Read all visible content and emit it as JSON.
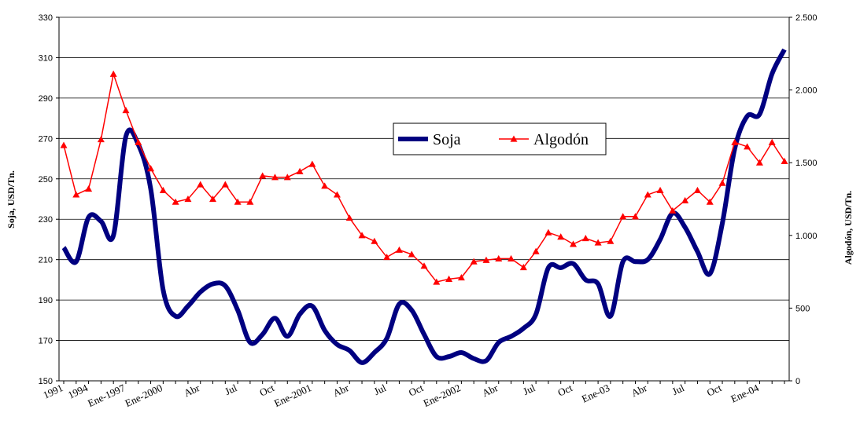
{
  "chart_data": {
    "type": "line",
    "categories": [
      "1991",
      null,
      "1994",
      null,
      null,
      "Ene-1997",
      null,
      null,
      "Ene-2000",
      null,
      null,
      "Abr",
      null,
      null,
      "Jul",
      null,
      null,
      "Oct",
      null,
      null,
      "Ene-2001",
      null,
      null,
      "Abr",
      null,
      null,
      "Jul",
      null,
      null,
      "Oct",
      null,
      null,
      "Ene-2002",
      null,
      null,
      "Abr",
      null,
      null,
      "Jul",
      null,
      null,
      "Oct",
      null,
      null,
      "Ene-03",
      null,
      null,
      "Abr",
      null,
      null,
      "Jul",
      null,
      null,
      "Oct",
      null,
      null,
      "Ene-04",
      null,
      null
    ],
    "series": [
      {
        "name": "Soja",
        "color": "#000080",
        "values": [
          216,
          209,
          231,
          229,
          222,
          271,
          267,
          245,
          195,
          182,
          187,
          194,
          198,
          197,
          185,
          169,
          173,
          181,
          172,
          183,
          187,
          175,
          168,
          165,
          159,
          164,
          171,
          188,
          185,
          173,
          162,
          162,
          164,
          161,
          160,
          169,
          172,
          176,
          183,
          206,
          206,
          208,
          200,
          198,
          182,
          209,
          209,
          210,
          220,
          233,
          226,
          214,
          203,
          228,
          265,
          281,
          282,
          302,
          314
        ]
      },
      {
        "name": "Algodón",
        "color": "#ff0000",
        "axis": "y2",
        "values": [
          1620,
          1280,
          1320,
          1660,
          2110,
          1860,
          1640,
          1460,
          1310,
          1230,
          1250,
          1350,
          1250,
          1350,
          1230,
          1230,
          1410,
          1400,
          1400,
          1440,
          1490,
          1340,
          1280,
          1120,
          1000,
          960,
          850,
          900,
          870,
          790,
          680,
          700,
          710,
          820,
          830,
          840,
          840,
          780,
          890,
          1020,
          990,
          940,
          980,
          950,
          960,
          1130,
          1130,
          1280,
          1310,
          1170,
          1240,
          1310,
          1230,
          1360,
          1640,
          1610,
          1500,
          1640,
          1510
        ]
      }
    ],
    "ylabel": "Soja, USD/Tn.",
    "y2label": "Algodón, USD/Tn.",
    "ylim": [
      150,
      330
    ],
    "yticks": [
      150,
      170,
      190,
      210,
      230,
      250,
      270,
      290,
      310,
      330
    ],
    "y2lim": [
      0,
      2500
    ],
    "y2ticks": [
      0,
      500,
      {
        "value": 1000,
        "label": "1.000"
      },
      {
        "value": 1500,
        "label": "1.500"
      },
      {
        "value": 2000,
        "label": "2.000"
      },
      {
        "value": 2500,
        "label": "2.500"
      }
    ],
    "grid": true,
    "legend": "center"
  }
}
